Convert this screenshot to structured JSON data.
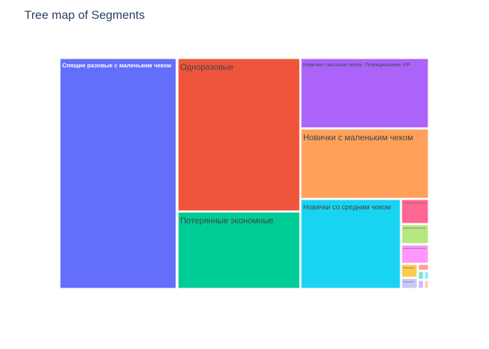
{
  "chart_data": {
    "type": "treemap",
    "title": "Tree map of Segments",
    "segments": [
      {
        "label": "Спящие разовые с маленьким чеком",
        "value": 28.5,
        "color": "#636efa"
      },
      {
        "label": "Одноразовые",
        "value": 20.0,
        "color": "#ef553b"
      },
      {
        "label": "Потерянные экономные",
        "value": 10.0,
        "color": "#00cc96"
      },
      {
        "label": "Новички с высоким чеком. Потенциальные VIP",
        "value": 9.4,
        "color": "#ab63fa"
      },
      {
        "label": "Новички с маленьким чеком",
        "value": 9.4,
        "color": "#ffa15a"
      },
      {
        "label": "Новички со средним чеком",
        "value": 12.0,
        "color": "#19d3f3"
      },
      {
        "label": "",
        "value": 1.6,
        "color": "#ff6692"
      },
      {
        "label": "",
        "value": 1.3,
        "color": "#b6e880"
      },
      {
        "label": "",
        "value": 1.2,
        "color": "#ff97ff"
      },
      {
        "label": "",
        "value": 0.8,
        "color": "#fecb52"
      },
      {
        "label": "",
        "value": 0.6,
        "color": "#c6c9f9"
      },
      {
        "label": "",
        "value": 0.4,
        "color": "#f8a292"
      },
      {
        "label": "",
        "value": 0.3,
        "color": "#7fe4d2"
      },
      {
        "label": "",
        "value": 0.3,
        "color": "#8ce9f9"
      },
      {
        "label": "",
        "value": 0.2,
        "color": "#d4b6fc"
      },
      {
        "label": "",
        "value": 0.2,
        "color": "#fcd0ad"
      }
    ]
  }
}
